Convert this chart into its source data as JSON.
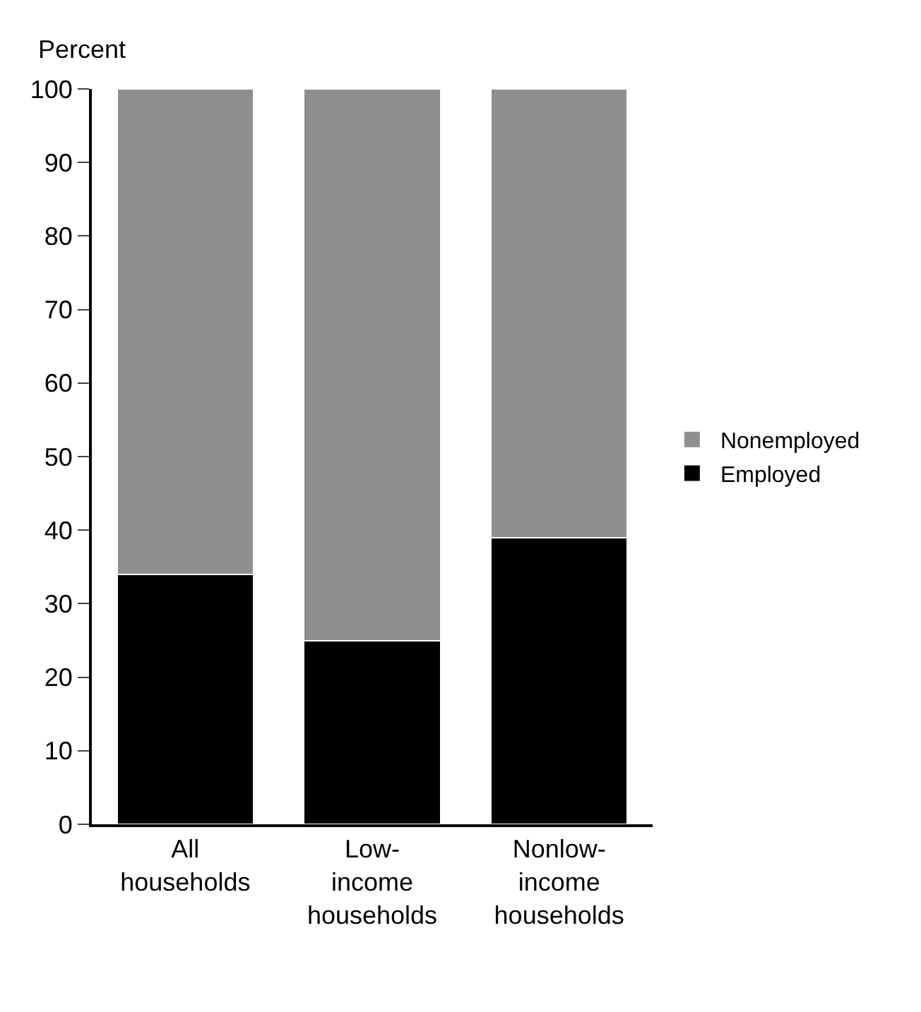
{
  "chart_data": {
    "type": "bar",
    "ylabel": "Percent",
    "categories": [
      "All\nhouseholds",
      "Low-\nincome\nhouseholds",
      "Nonlow-\nincome\nhouseholds"
    ],
    "stacked": true,
    "series": [
      {
        "name": "Employed",
        "color": "#000000",
        "values": [
          34,
          25,
          39
        ]
      },
      {
        "name": "Nonemployed",
        "color": "#8f8f8f",
        "values": [
          66,
          75,
          61
        ]
      }
    ],
    "ylim": [
      0,
      100
    ],
    "yticks": [
      0,
      10,
      20,
      30,
      40,
      50,
      60,
      70,
      80,
      90,
      100
    ],
    "grid": false,
    "legend": "right"
  }
}
